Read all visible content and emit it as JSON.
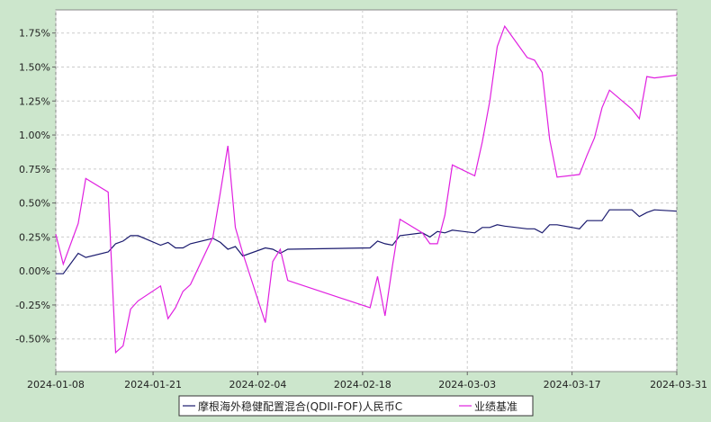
{
  "chart_data": {
    "type": "line",
    "title": "",
    "xlabel": "",
    "ylabel": "",
    "ylim": [
      -0.0074,
      0.0192
    ],
    "xlim": [
      "2024-01-08",
      "2024-03-31"
    ],
    "y_ticks": [
      {
        "value": 0.0175,
        "label": "1.75%"
      },
      {
        "value": 0.015,
        "label": "1.50%"
      },
      {
        "value": 0.0125,
        "label": "1.25%"
      },
      {
        "value": 0.01,
        "label": "1.00%"
      },
      {
        "value": 0.0075,
        "label": "0.75%"
      },
      {
        "value": 0.005,
        "label": "0.50%"
      },
      {
        "value": 0.0025,
        "label": "0.25%"
      },
      {
        "value": 0.0,
        "label": "0.00%"
      },
      {
        "value": -0.0025,
        "label": "-0.25%"
      },
      {
        "value": -0.005,
        "label": "-0.50%"
      }
    ],
    "x_ticks": [
      "2024-01-08",
      "2024-01-21",
      "2024-02-04",
      "2024-02-18",
      "2024-03-03",
      "2024-03-17",
      "2024-03-31"
    ],
    "grid": true,
    "legend_position": "bottom",
    "series": [
      {
        "name": "摩根海外稳健配置混合(QDII-FOF)人民币C",
        "color": "#1a1a6e",
        "x": [
          "2024-01-08",
          "2024-01-09",
          "2024-01-11",
          "2024-01-12",
          "2024-01-15",
          "2024-01-16",
          "2024-01-17",
          "2024-01-18",
          "2024-01-19",
          "2024-01-22",
          "2024-01-23",
          "2024-01-24",
          "2024-01-25",
          "2024-01-26",
          "2024-01-29",
          "2024-01-30",
          "2024-01-31",
          "2024-02-01",
          "2024-02-02",
          "2024-02-05",
          "2024-02-06",
          "2024-02-07",
          "2024-02-08",
          "2024-02-19",
          "2024-02-20",
          "2024-02-21",
          "2024-02-22",
          "2024-02-23",
          "2024-02-26",
          "2024-02-27",
          "2024-02-28",
          "2024-02-29",
          "2024-03-01",
          "2024-03-04",
          "2024-03-05",
          "2024-03-06",
          "2024-03-07",
          "2024-03-08",
          "2024-03-11",
          "2024-03-12",
          "2024-03-13",
          "2024-03-14",
          "2024-03-15",
          "2024-03-18",
          "2024-03-19",
          "2024-03-20",
          "2024-03-21",
          "2024-03-22",
          "2024-03-25",
          "2024-03-26",
          "2024-03-27",
          "2024-03-28",
          "2024-03-31"
        ],
        "values": [
          -0.0002,
          -0.0002,
          0.0013,
          0.001,
          0.0014,
          0.002,
          0.0022,
          0.0026,
          0.0026,
          0.0019,
          0.0021,
          0.0017,
          0.0017,
          0.002,
          0.0024,
          0.0021,
          0.0016,
          0.0018,
          0.0011,
          0.0017,
          0.0016,
          0.0013,
          0.0016,
          0.0017,
          0.0022,
          0.002,
          0.0019,
          0.0026,
          0.0028,
          0.0025,
          0.0029,
          0.0028,
          0.003,
          0.0028,
          0.0032,
          0.0032,
          0.0034,
          0.0033,
          0.0031,
          0.0031,
          0.0028,
          0.0034,
          0.0034,
          0.0031,
          0.0037,
          0.0037,
          0.0037,
          0.0045,
          0.0045,
          0.004,
          0.0043,
          0.0045,
          0.0044
        ]
      },
      {
        "name": "业绩基准",
        "color": "#e020e0",
        "x": [
          "2024-01-08",
          "2024-01-09",
          "2024-01-11",
          "2024-01-12",
          "2024-01-15",
          "2024-01-16",
          "2024-01-17",
          "2024-01-18",
          "2024-01-19",
          "2024-01-22",
          "2024-01-23",
          "2024-01-24",
          "2024-01-25",
          "2024-01-26",
          "2024-01-29",
          "2024-01-30",
          "2024-01-31",
          "2024-02-01",
          "2024-02-02",
          "2024-02-05",
          "2024-02-06",
          "2024-02-07",
          "2024-02-08",
          "2024-02-19",
          "2024-02-20",
          "2024-02-21",
          "2024-02-22",
          "2024-02-23",
          "2024-02-26",
          "2024-02-27",
          "2024-02-28",
          "2024-02-29",
          "2024-03-01",
          "2024-03-04",
          "2024-03-05",
          "2024-03-06",
          "2024-03-07",
          "2024-03-08",
          "2024-03-11",
          "2024-03-12",
          "2024-03-13",
          "2024-03-14",
          "2024-03-15",
          "2024-03-18",
          "2024-03-19",
          "2024-03-20",
          "2024-03-21",
          "2024-03-22",
          "2024-03-25",
          "2024-03-26",
          "2024-03-27",
          "2024-03-28",
          "2024-03-31"
        ],
        "values": [
          0.0027,
          0.0005,
          0.0035,
          0.0068,
          0.0058,
          -0.006,
          -0.0055,
          -0.0028,
          -0.0022,
          -0.0011,
          -0.0035,
          -0.0027,
          -0.0015,
          -0.001,
          0.0025,
          0.0058,
          0.0092,
          0.0032,
          0.0013,
          -0.0038,
          0.0007,
          0.0016,
          -0.0007,
          -0.0027,
          -0.0004,
          -0.0033,
          0.0004,
          0.0038,
          0.0028,
          0.002,
          0.002,
          0.0041,
          0.0078,
          0.007,
          0.0095,
          0.0125,
          0.0165,
          0.018,
          0.0157,
          0.0155,
          0.0146,
          0.0097,
          0.0069,
          0.0071,
          0.0085,
          0.0098,
          0.012,
          0.0133,
          0.0119,
          0.0112,
          0.0143,
          0.0142,
          0.0144
        ]
      }
    ]
  }
}
